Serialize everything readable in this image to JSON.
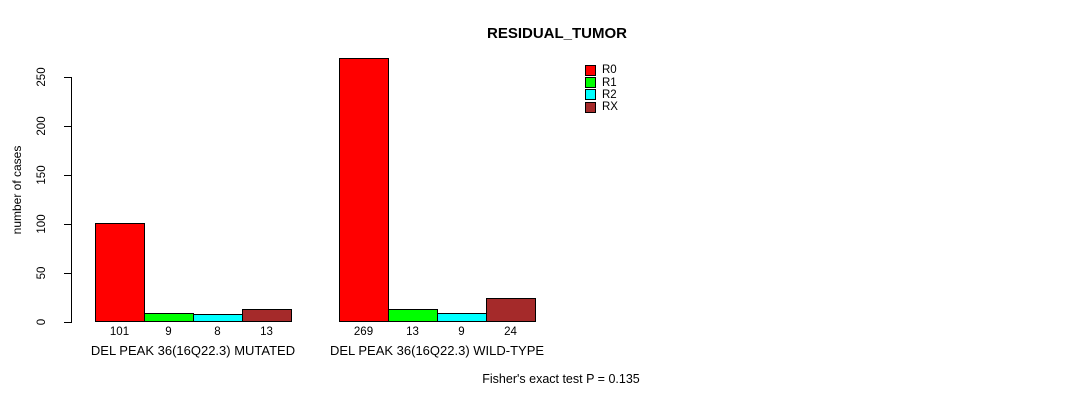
{
  "chart_data": {
    "type": "bar",
    "title": "RESIDUAL_TUMOR",
    "xlabel": "",
    "ylabel": "number of cases",
    "ylim": [
      0,
      250
    ],
    "yticks": [
      0,
      50,
      100,
      150,
      200,
      250
    ],
    "grid": false,
    "legend_position": "top-right",
    "bar_value_labels": true,
    "categories": [
      "DEL PEAK 36(16Q22.3) MUTATED",
      "DEL PEAK 36(16Q22.3) WILD-TYPE"
    ],
    "series": [
      {
        "name": "R0",
        "color": "#ff0000",
        "values": [
          101,
          269
        ]
      },
      {
        "name": "R1",
        "color": "#00ff00",
        "values": [
          9,
          13
        ]
      },
      {
        "name": "R2",
        "color": "#00ffff",
        "values": [
          8,
          9
        ]
      },
      {
        "name": "RX",
        "color": "#a52a2a",
        "values": [
          13,
          24
        ]
      }
    ],
    "annotation": "Fisher's exact test P = 0.135"
  }
}
